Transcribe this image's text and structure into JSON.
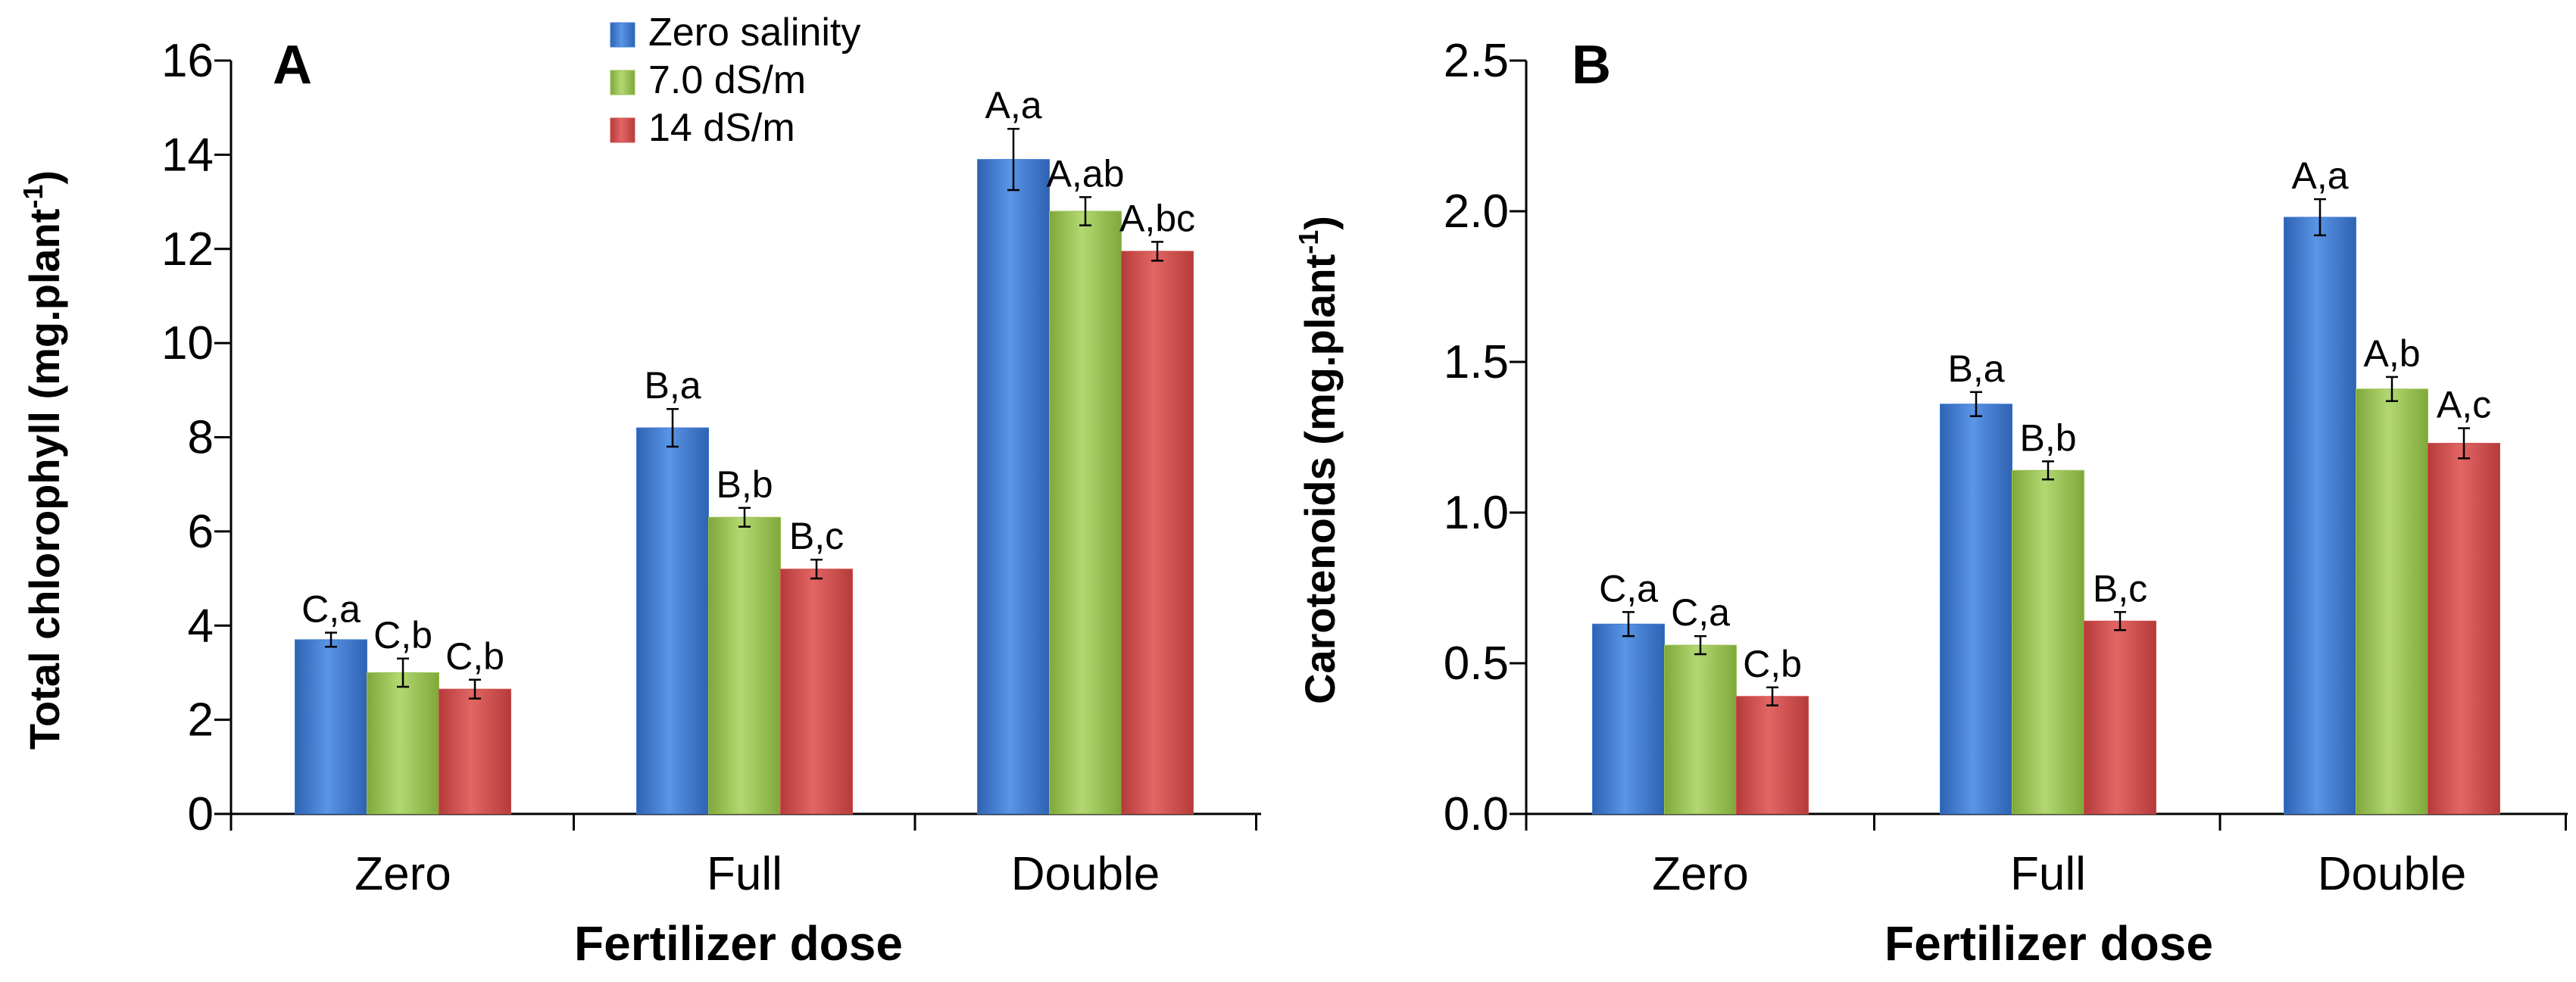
{
  "colors": {
    "zero_salinity": "#3d7bd6",
    "ds7": "#9bc353",
    "ds14": "#d24f4d",
    "axis": "#000000"
  },
  "legend": {
    "items": [
      {
        "label": "Zero salinity",
        "color_key": "zero_salinity"
      },
      {
        "label": "7.0 dS/m",
        "color_key": "ds7"
      },
      {
        "label": "14 dS/m",
        "color_key": "ds14"
      }
    ]
  },
  "chart_data": [
    {
      "panel_label": "A",
      "type": "bar",
      "title": "",
      "xlabel": "Fertilizer dose",
      "ylabel_main": "Total chlorophyll (mg.plant",
      "ylabel_sup": "-1",
      "ylabel_close": ")",
      "ylim": [
        0,
        16
      ],
      "yticks": [
        0,
        2,
        4,
        6,
        8,
        10,
        12,
        14,
        16
      ],
      "ytick_labels": [
        "0",
        "2",
        "4",
        "6",
        "8",
        "10",
        "12",
        "14",
        "16"
      ],
      "categories": [
        "Zero",
        "Full",
        "Double"
      ],
      "series": [
        {
          "name": "Zero salinity",
          "values": [
            3.7,
            8.2,
            13.9
          ],
          "errors": [
            0.15,
            0.4,
            0.65
          ],
          "labels": [
            "C,a",
            "B,a",
            "A,a"
          ]
        },
        {
          "name": "7.0 dS/m",
          "values": [
            3.0,
            6.3,
            12.8
          ],
          "errors": [
            0.3,
            0.2,
            0.3
          ],
          "labels": [
            "C,b",
            "B,b",
            "A,ab"
          ]
        },
        {
          "name": "14 dS/m",
          "values": [
            2.65,
            5.2,
            11.95
          ],
          "errors": [
            0.2,
            0.2,
            0.2
          ],
          "labels": [
            "C,b",
            "B,c",
            "A,bc"
          ]
        }
      ]
    },
    {
      "panel_label": "B",
      "type": "bar",
      "title": "",
      "xlabel": "Fertilizer dose",
      "ylabel_main": "Carotenoids  (mg.plant",
      "ylabel_sup": "-1",
      "ylabel_close": ")",
      "ylim": [
        0,
        2.5
      ],
      "yticks": [
        0,
        0.5,
        1.0,
        1.5,
        2.0,
        2.5
      ],
      "ytick_labels": [
        "0.0",
        "0.5",
        "1.0",
        "1.5",
        "2.0",
        "2.5"
      ],
      "categories": [
        "Zero",
        "Full",
        "Double"
      ],
      "series": [
        {
          "name": "Zero salinity",
          "values": [
            0.63,
            1.36,
            1.98
          ],
          "errors": [
            0.04,
            0.04,
            0.06
          ],
          "labels": [
            "C,a",
            "B,a",
            "A,a"
          ]
        },
        {
          "name": "7.0 dS/m",
          "values": [
            0.56,
            1.14,
            1.41
          ],
          "errors": [
            0.03,
            0.03,
            0.04
          ],
          "labels": [
            "C,a",
            "B,b",
            "A,b"
          ]
        },
        {
          "name": "14 dS/m",
          "values": [
            0.39,
            0.64,
            1.23
          ],
          "errors": [
            0.03,
            0.03,
            0.05
          ],
          "labels": [
            "C,b",
            "B,c",
            "A,c"
          ]
        }
      ]
    }
  ]
}
